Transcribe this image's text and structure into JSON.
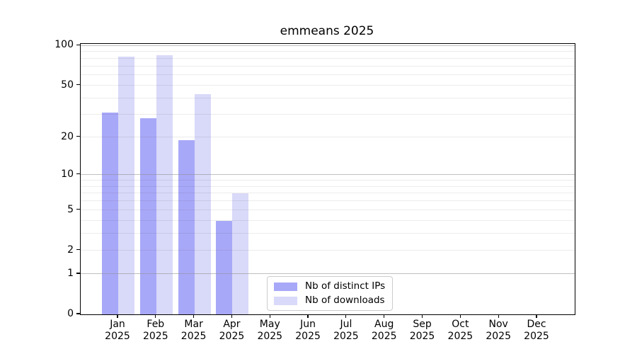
{
  "figure": {
    "title": "emmeans 2025"
  },
  "chart_data": {
    "type": "bar",
    "title": "emmeans 2025",
    "x": {
      "months": [
        "Jan",
        "Feb",
        "Mar",
        "Apr",
        "May",
        "Jun",
        "Jul",
        "Aug",
        "Sep",
        "Oct",
        "Nov",
        "Dec"
      ],
      "year": "2025"
    },
    "series": [
      {
        "name": "Nb of distinct IPs",
        "color": "#a8a8f8",
        "values": [
          31,
          28,
          19,
          4,
          0,
          0,
          0,
          0,
          0,
          0,
          0,
          0
        ]
      },
      {
        "name": "Nb of downloads",
        "color": "#d9d9f9",
        "values": [
          83,
          85,
          43,
          7,
          0,
          0,
          0,
          0,
          0,
          0,
          0,
          0
        ]
      }
    ],
    "y_axis": {
      "scale": "log1p",
      "ticks": [
        0,
        1,
        2,
        5,
        10,
        20,
        50,
        100
      ],
      "major_gridlines": [
        1,
        10,
        100
      ],
      "minor_gridlines": [
        2,
        3,
        4,
        5,
        6,
        7,
        8,
        9,
        20,
        30,
        40,
        50,
        60,
        70,
        80,
        90
      ],
      "ylim": [
        0,
        103
      ]
    },
    "legend": {
      "position": "bottom-center-left",
      "entries": [
        "Nb of distinct IPs",
        "Nb of downloads"
      ]
    },
    "grid": true
  },
  "colors": {
    "background": "#ffffff",
    "spine": "#000000",
    "major_grid": "#c0c0c0",
    "minor_grid": "#ececec",
    "legend_border": "#cccccc",
    "text": "#000000",
    "series_dark": "#a8a8f8",
    "series_light": "#d9d9f9"
  }
}
